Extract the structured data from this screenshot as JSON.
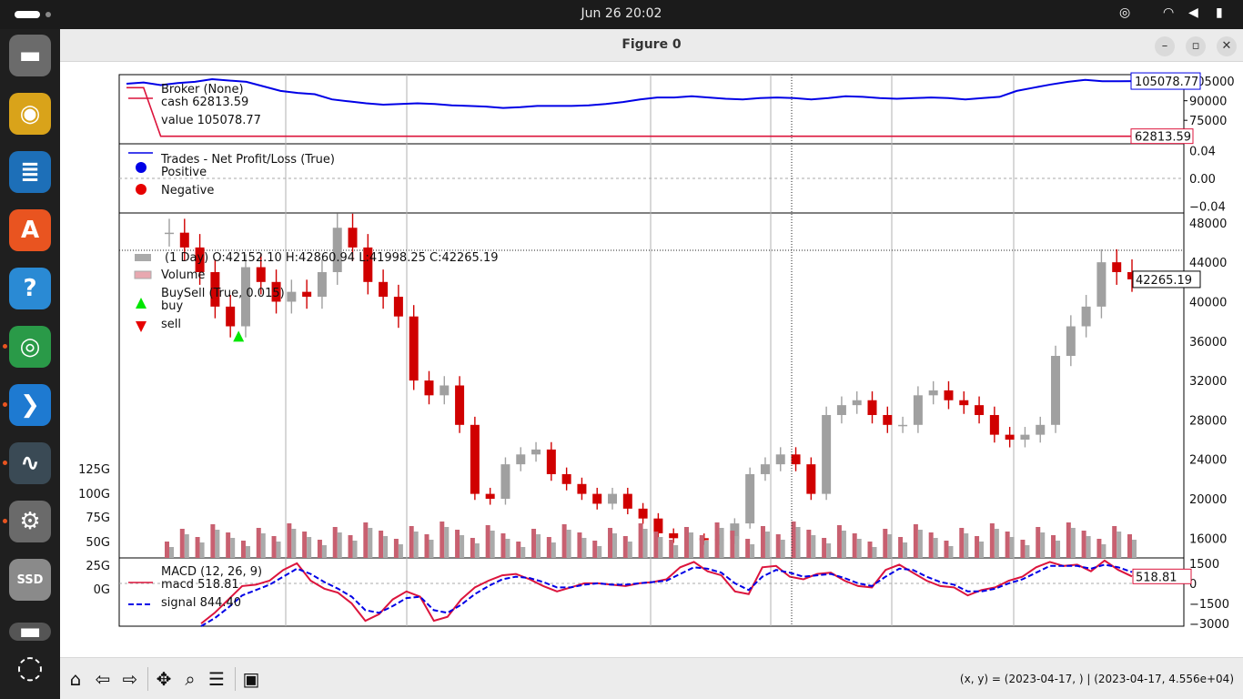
{
  "topbar": {
    "clock": "Jun 26  20:02"
  },
  "window": {
    "title": "Figure 0",
    "minimize": "–",
    "maximize": "▫",
    "close": "✕"
  },
  "dock": {
    "items": [
      {
        "name": "files",
        "glyph": "▬",
        "color": "#6b6b6b"
      },
      {
        "name": "rhythmbox",
        "glyph": "◉",
        "color": "#d9a31a"
      },
      {
        "name": "writer",
        "glyph": "≣",
        "color": "#1d6fb8"
      },
      {
        "name": "app-center",
        "glyph": "A",
        "color": "#e95420"
      },
      {
        "name": "help",
        "glyph": "?",
        "color": "#2a8ad4"
      },
      {
        "name": "chrome",
        "glyph": "◎",
        "color": "#2a9a48"
      },
      {
        "name": "vscode",
        "glyph": "❯",
        "color": "#1e7ad1"
      },
      {
        "name": "monitor",
        "glyph": "∿",
        "color": "#3a4a55"
      },
      {
        "name": "settings",
        "glyph": "⚙",
        "color": "#6a6a6a"
      },
      {
        "name": "ssd",
        "glyph": "SSD",
        "color": "#8a8a8a"
      },
      {
        "name": "disk",
        "glyph": "▬",
        "color": "#555555"
      },
      {
        "name": "ubuntu",
        "glyph": "◌",
        "color": "#1f1f1f"
      }
    ]
  },
  "toolbar": {
    "coords": "(x, y) = (2023-04-17, ) | (2023-04-17, 4.556e+04)"
  },
  "colors": {
    "blue": "#0000e6",
    "red": "#dc143c",
    "up": "#a0a0a0",
    "down": "#d00000"
  },
  "chart_data": [
    {
      "type": "line",
      "panel": "broker",
      "legend": [
        "Broker (None)",
        "cash 62813.59",
        "value 105078.77"
      ],
      "yticks": [
        "105000",
        "90000",
        "75000"
      ],
      "ylim": [
        57000,
        110000
      ],
      "series": [
        {
          "name": "value",
          "values": [
            103000,
            104000,
            102000,
            103500,
            104500,
            106500,
            105500,
            104500,
            101000,
            97500,
            96000,
            95000,
            91000,
            89500,
            88000,
            87000,
            87500,
            88000,
            87500,
            86500,
            86000,
            85500,
            84500,
            85000,
            86000,
            86000,
            86000,
            86500,
            87500,
            89000,
            91000,
            92500,
            92500,
            93500,
            92500,
            91500,
            91000,
            92000,
            92500,
            92000,
            91000,
            92000,
            93500,
            93000,
            92000,
            91500,
            92000,
            92500,
            92000,
            91000,
            92000,
            93000,
            97500,
            100000,
            102500,
            104500,
            106000,
            105000,
            105000,
            105078.77
          ]
        },
        {
          "name": "cash",
          "values": [
            100000,
            100000,
            62813.59,
            62813.59,
            62813.59,
            62813.59,
            62813.59,
            62813.59,
            62813.59,
            62813.59,
            62813.59,
            62813.59,
            62813.59,
            62813.59,
            62813.59,
            62813.59,
            62813.59,
            62813.59,
            62813.59,
            62813.59,
            62813.59,
            62813.59,
            62813.59,
            62813.59,
            62813.59,
            62813.59,
            62813.59,
            62813.59,
            62813.59,
            62813.59,
            62813.59,
            62813.59,
            62813.59,
            62813.59,
            62813.59,
            62813.59,
            62813.59,
            62813.59,
            62813.59,
            62813.59,
            62813.59,
            62813.59,
            62813.59,
            62813.59,
            62813.59,
            62813.59,
            62813.59,
            62813.59,
            62813.59,
            62813.59,
            62813.59,
            62813.59,
            62813.59,
            62813.59,
            62813.59,
            62813.59,
            62813.59,
            62813.59,
            62813.59,
            62813.59
          ]
        }
      ],
      "last_labels": [
        "105078.77",
        "62813.59"
      ]
    },
    {
      "type": "scatter",
      "panel": "trades",
      "legend": [
        "Trades - Net Profit/Loss (True)",
        "Positive",
        "Negative"
      ],
      "yticks": [
        "0.04",
        "0.00",
        "−0.04"
      ],
      "ylim": [
        -0.05,
        0.05
      ]
    },
    {
      "type": "candlestick",
      "panel": "price",
      "legend": [
        "(1 Day) O:42152.10 H:42860.94 L:41998.25 C:42265.19",
        "Volume",
        "BuySell (True, 0.015)",
        "buy",
        "sell"
      ],
      "yticks": [
        "48000",
        "44000",
        "40000",
        "36000",
        "32000",
        "28000",
        "24000",
        "20000",
        "16000"
      ],
      "ylim": [
        14000,
        49000
      ],
      "volume_ticks": [
        "125G",
        "100G",
        "75G",
        "50G",
        "25G",
        "0G"
      ],
      "close": [
        47000,
        45500,
        43000,
        39500,
        37500,
        43500,
        42000,
        40000,
        41000,
        40500,
        43000,
        47500,
        45500,
        42000,
        40500,
        38500,
        32000,
        30500,
        31500,
        27500,
        20500,
        20000,
        23500,
        24500,
        25000,
        22500,
        21500,
        20500,
        19500,
        20500,
        19000,
        18000,
        16500,
        16000,
        16000,
        15800,
        15900,
        17500,
        22500,
        23500,
        24500,
        23500,
        20500,
        28500,
        29500,
        30000,
        28500,
        27500,
        27500,
        30500,
        31000,
        30000,
        29500,
        28500,
        26500,
        26000,
        26500,
        27500,
        34500,
        37500,
        39500,
        44000,
        43000,
        42265.19
      ],
      "last_label": "42265.19",
      "buy_marker": {
        "x_index": 4,
        "price": 36500
      }
    },
    {
      "type": "line",
      "panel": "macd",
      "legend": [
        "MACD (12, 26, 9)",
        "macd 518.81",
        "signal 844.40"
      ],
      "yticks": [
        "1500",
        "0",
        "−1500",
        "−3000"
      ],
      "ylim": [
        -3200,
        1900
      ],
      "series": [
        {
          "name": "macd",
          "values": [
            -3000,
            -2200,
            -1200,
            -200,
            -100,
            200,
            1000,
            1500,
            200,
            -400,
            -700,
            -1500,
            -2800,
            -2300,
            -1200,
            -600,
            -1000,
            -2800,
            -2500,
            -1200,
            -300,
            200,
            600,
            700,
            300,
            -200,
            -600,
            -300,
            0,
            0,
            -100,
            -200,
            0,
            100,
            300,
            1200,
            1600,
            900,
            600,
            -600,
            -800,
            1200,
            1300,
            500,
            300,
            700,
            800,
            200,
            -200,
            -300,
            1000,
            1400,
            800,
            200,
            -200,
            -300,
            -900,
            -500,
            -300,
            200,
            500,
            1200,
            1600,
            1300,
            1400,
            900,
            1700,
            1000,
            518.81
          ]
        },
        {
          "name": "signal",
          "values": [
            -3200,
            -2600,
            -1800,
            -900,
            -500,
            -100,
            500,
            1100,
            700,
            100,
            -400,
            -1000,
            -2000,
            -2200,
            -1700,
            -1100,
            -1000,
            -2000,
            -2200,
            -1600,
            -800,
            -200,
            300,
            500,
            400,
            100,
            -300,
            -300,
            -100,
            0,
            -100,
            -100,
            0,
            100,
            200,
            700,
            1200,
            1100,
            800,
            0,
            -500,
            500,
            1000,
            800,
            500,
            600,
            700,
            400,
            0,
            -200,
            500,
            1100,
            1000,
            500,
            100,
            -100,
            -600,
            -600,
            -400,
            0,
            300,
            800,
            1300,
            1300,
            1300,
            1100,
            1400,
            1200,
            844.4
          ]
        }
      ],
      "last_label": "518.81"
    }
  ]
}
